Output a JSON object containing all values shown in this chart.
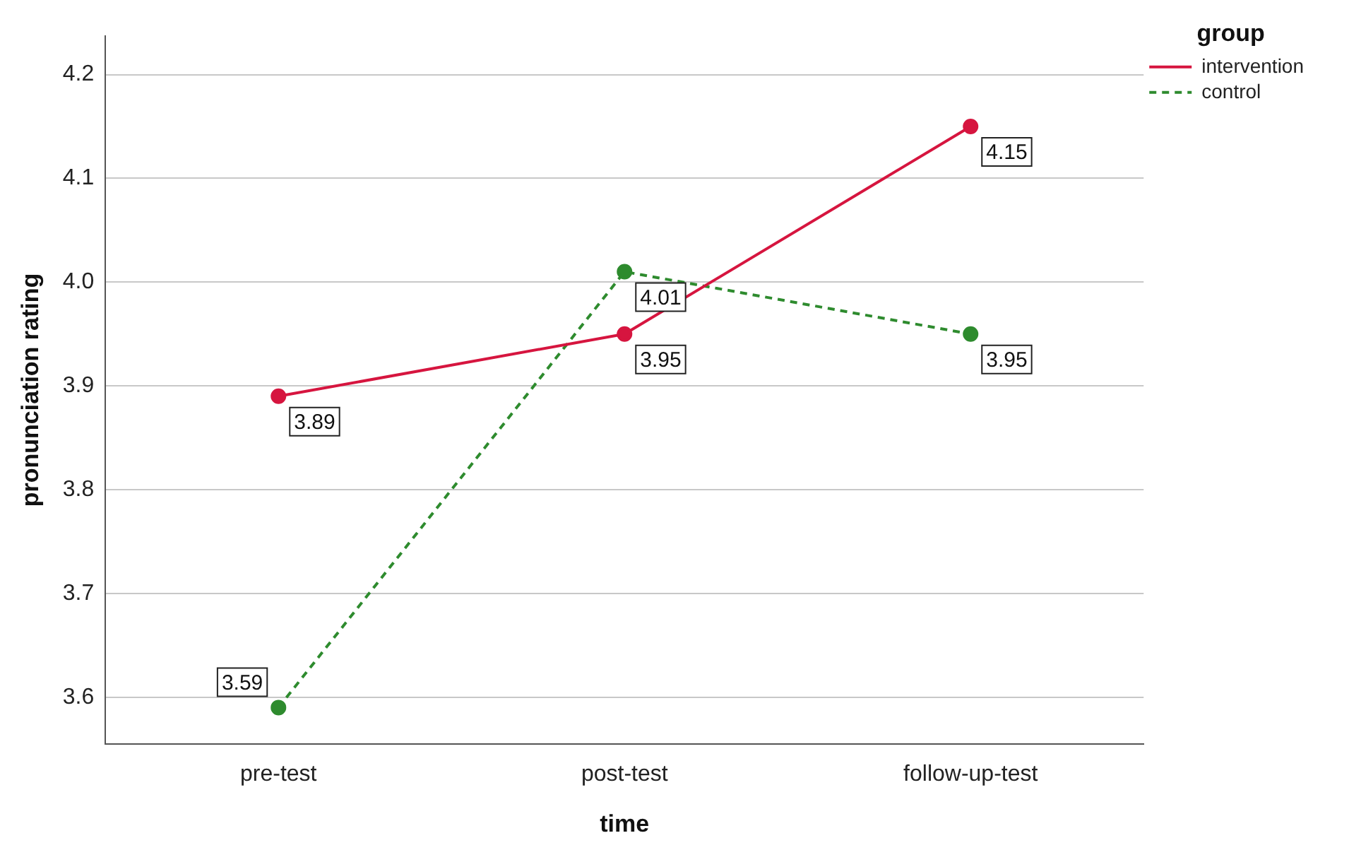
{
  "chart_data": {
    "type": "line",
    "xlabel": "time",
    "ylabel": "pronunciation rating",
    "legend_title": "group",
    "categories": [
      "pre-test",
      "post-test",
      "follow-up-test"
    ],
    "series": [
      {
        "name": "intervention",
        "color": "#d6153f",
        "values": [
          3.89,
          3.95,
          4.15
        ],
        "line_style": "solid"
      },
      {
        "name": "control",
        "color": "#2e8b2e",
        "values": [
          3.59,
          4.01,
          3.95
        ],
        "line_style": "dashed"
      }
    ],
    "ylim": [
      3.555,
      4.237
    ],
    "yticks": [
      3.6,
      3.7,
      3.8,
      3.9,
      {
        "value": 4,
        "label": "4.0"
      },
      4.1,
      4.2
    ],
    "grid": "y",
    "legend": "top right",
    "marker": "circle",
    "data_labels": true
  }
}
